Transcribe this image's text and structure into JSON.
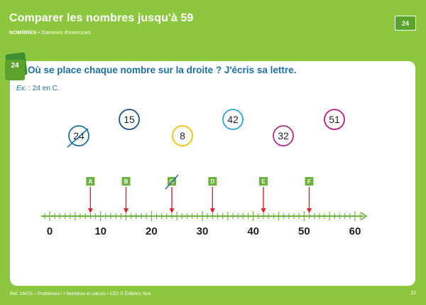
{
  "header": {
    "title": "Comparer les nombres jusqu'à 59",
    "subtitle_bold": "NOMBRES",
    "subtitle_rest": " • Gammes d'exercices",
    "badge": "24"
  },
  "exercise": {
    "number": "24",
    "question": "Où se place chaque nombre sur la droite ? J'écris sa lettre.",
    "example_prefix": "Ex.",
    "example_rest": " : 24 en C."
  },
  "numbers": [
    {
      "value": "24",
      "color": "#1d6fa5",
      "crossed": true
    },
    {
      "value": "15",
      "color": "#1d4f8c",
      "crossed": false
    },
    {
      "value": "8",
      "color": "#f2c200",
      "crossed": false
    },
    {
      "value": "42",
      "color": "#2aa7d8",
      "crossed": false
    },
    {
      "value": "32",
      "color": "#b22c86",
      "crossed": false
    },
    {
      "value": "51",
      "color": "#c0197a",
      "crossed": false
    }
  ],
  "number_line": {
    "min": 0,
    "max": 60,
    "labels": [
      "0",
      "10",
      "20",
      "30",
      "40",
      "50",
      "60"
    ],
    "markers": [
      {
        "letter": "A",
        "value": 8,
        "crossed": false
      },
      {
        "letter": "B",
        "value": 15,
        "crossed": false
      },
      {
        "letter": "C",
        "value": 24,
        "crossed": true
      },
      {
        "letter": "D",
        "value": 32,
        "crossed": false
      },
      {
        "letter": "E",
        "value": 42,
        "crossed": false
      },
      {
        "letter": "F",
        "value": 51,
        "crossed": false
      }
    ]
  },
  "footer": {
    "left": "Réf. 16075 – Problèmes ! • Nombres et calculs • CE2 © Éditions Sed",
    "right": "11"
  },
  "colors": {
    "background": "#8dc63f",
    "accent_green": "#5aa42b",
    "question_blue": "#1d6fa5",
    "arrow_red": "#d7262b"
  }
}
